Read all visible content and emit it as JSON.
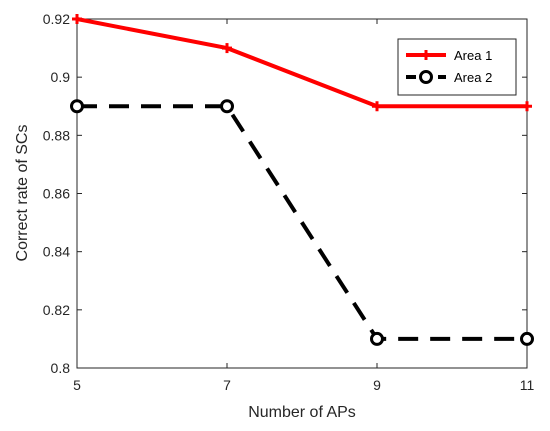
{
  "chart_data": {
    "type": "line",
    "title": "",
    "xlabel": "Number of APs",
    "ylabel": "Correct rate of SCs",
    "x": [
      5,
      7,
      9,
      11
    ],
    "xlim": [
      5,
      11
    ],
    "ylim": [
      0.8,
      0.92
    ],
    "xticks": [
      "5",
      "7",
      "9",
      "11"
    ],
    "yticks": [
      "0.8",
      "0.82",
      "0.84",
      "0.86",
      "0.88",
      "0.9",
      "0.92"
    ],
    "grid": false,
    "legend_position": "top-right",
    "series": [
      {
        "name": "Area 1",
        "values": [
          0.92,
          0.91,
          0.89,
          0.89
        ],
        "color": "#ff0000",
        "line_style": "solid",
        "marker": "plus"
      },
      {
        "name": "Area 2",
        "values": [
          0.89,
          0.89,
          0.81,
          0.81
        ],
        "color": "#000000",
        "line_style": "dashed",
        "marker": "circle"
      }
    ]
  }
}
